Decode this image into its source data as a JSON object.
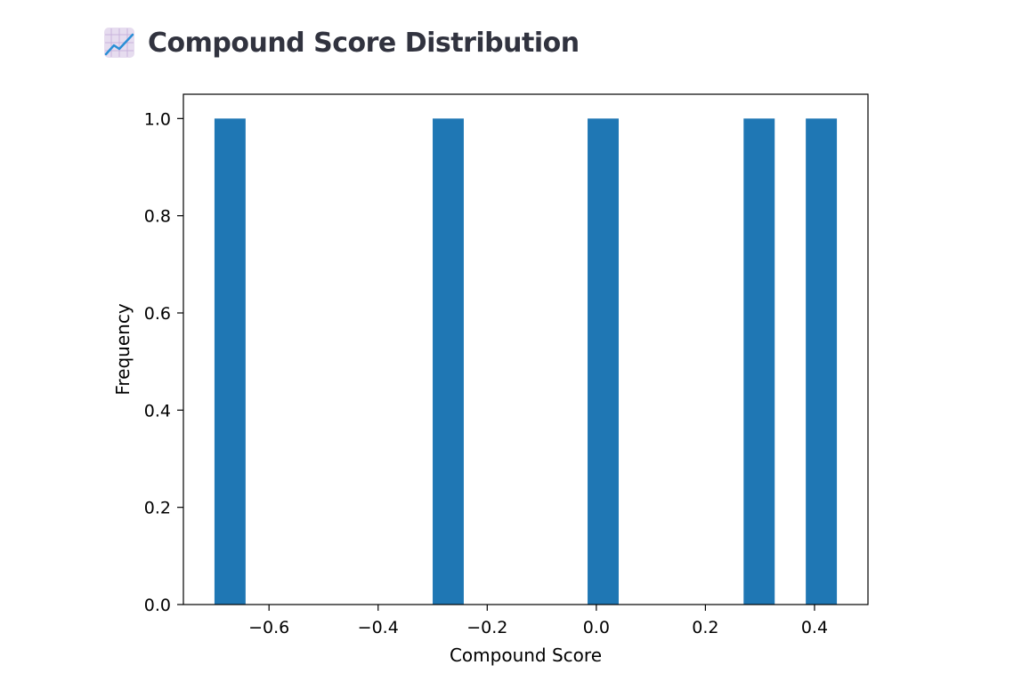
{
  "header": {
    "title": "Compound Score Distribution",
    "icon": "chart-increasing-icon"
  },
  "chart_data": {
    "type": "bar",
    "title": "",
    "xlabel": "Compound Score",
    "ylabel": "Frequency",
    "xlim": [
      -0.757,
      0.498
    ],
    "ylim": [
      0,
      1.05
    ],
    "xticks": [
      -0.6,
      -0.4,
      -0.2,
      0.0,
      0.2,
      0.4
    ],
    "xtick_labels": [
      "−0.6",
      "−0.4",
      "−0.2",
      "0.0",
      "0.2",
      "0.4"
    ],
    "yticks": [
      0.0,
      0.2,
      0.4,
      0.6,
      0.8,
      1.0
    ],
    "ytick_labels": [
      "0.0",
      "0.2",
      "0.4",
      "0.6",
      "0.8",
      "1.0"
    ],
    "bin_width": 0.057,
    "bins": [
      {
        "start": -0.7,
        "end": -0.643,
        "count": 1
      },
      {
        "start": -0.3,
        "end": -0.243,
        "count": 1
      },
      {
        "start": -0.016,
        "end": 0.041,
        "count": 1
      },
      {
        "start": 0.27,
        "end": 0.327,
        "count": 1
      },
      {
        "start": 0.384,
        "end": 0.441,
        "count": 1
      }
    ],
    "bar_color": "#1f77b4",
    "grid": false,
    "legend": "none"
  }
}
